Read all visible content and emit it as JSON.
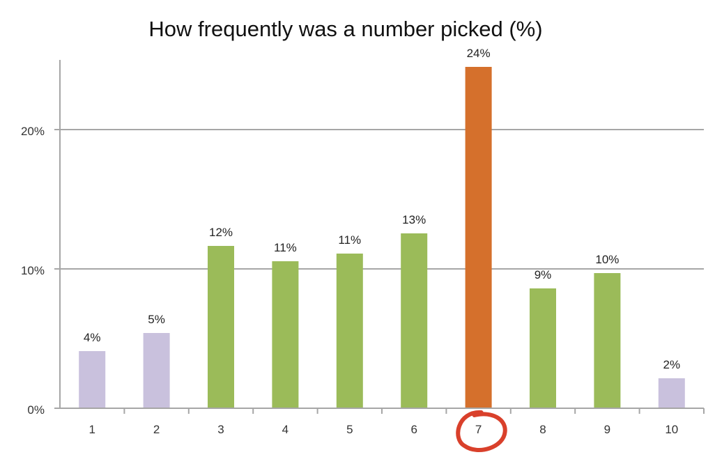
{
  "chart_data": {
    "type": "bar",
    "title": "How frequently was a number picked (%)",
    "xlabel": "",
    "ylabel": "",
    "categories": [
      "1",
      "2",
      "3",
      "4",
      "5",
      "6",
      "7",
      "8",
      "9",
      "10"
    ],
    "values": [
      4.1,
      5.4,
      11.65,
      10.55,
      11.1,
      12.55,
      24.5,
      8.6,
      9.7,
      2.15
    ],
    "data_labels": [
      "4%",
      "5%",
      "12%",
      "11%",
      "11%",
      "13%",
      "24%",
      "9%",
      "10%",
      "2%"
    ],
    "ylim": [
      0,
      25
    ],
    "yticks": [
      0,
      10,
      20
    ],
    "ytick_labels": [
      "0%",
      "10%",
      "20%"
    ],
    "grid": true,
    "legend": "none",
    "bar_colors": [
      "#c9c1dd",
      "#c9c1dd",
      "#9bbb59",
      "#9bbb59",
      "#9bbb59",
      "#9bbb59",
      "#d5702c",
      "#9bbb59",
      "#9bbb59",
      "#c9c1dd"
    ],
    "annotation": {
      "type": "hand-drawn circle",
      "target_category": "7",
      "color": "#d9402b"
    }
  }
}
